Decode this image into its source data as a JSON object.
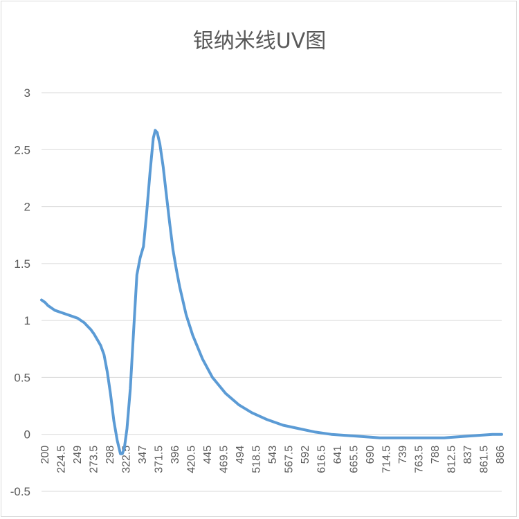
{
  "chart_data": {
    "type": "line",
    "title": "银纳米线UV图",
    "xlabel": "",
    "ylabel": "",
    "ylim": [
      -0.5,
      3
    ],
    "yticks": [
      "-0.5",
      "0",
      "0.5",
      "1",
      "1.5",
      "2",
      "2.5",
      "3"
    ],
    "xticks": [
      "200",
      "224.5",
      "249",
      "273.5",
      "298",
      "322.5",
      "347",
      "371.5",
      "396",
      "420.5",
      "445",
      "469.5",
      "494",
      "518.5",
      "543",
      "567.5",
      "592",
      "616.5",
      "641",
      "665.5",
      "690",
      "714.5",
      "739",
      "763.5",
      "788",
      "812.5",
      "837",
      "861.5",
      "886"
    ],
    "xlim": [
      200,
      900
    ],
    "grid": true,
    "legend": "none",
    "color": "#5b9bd5",
    "series": [
      {
        "x": [
          200,
          205,
          210,
          215,
          220,
          230,
          240,
          250,
          255,
          260,
          265,
          270,
          275,
          280,
          285,
          290,
          295,
          300,
          305,
          310,
          315,
          320,
          323,
          326,
          330,
          335,
          340,
          345,
          350,
          355,
          360,
          365,
          370,
          373,
          376,
          380,
          385,
          390,
          395,
          400,
          405,
          410,
          420,
          430,
          445,
          460,
          480,
          500,
          520,
          543,
          567.5,
          592,
          616.5,
          641,
          665.5,
          690,
          714.5,
          739,
          763.5,
          788,
          812.5,
          837,
          861.5,
          886,
          900
        ],
        "values": [
          1.18,
          1.16,
          1.13,
          1.11,
          1.09,
          1.07,
          1.05,
          1.03,
          1.02,
          1.0,
          0.98,
          0.95,
          0.92,
          0.88,
          0.83,
          0.78,
          0.7,
          0.55,
          0.35,
          0.12,
          -0.05,
          -0.17,
          -0.17,
          -0.12,
          0.05,
          0.4,
          0.9,
          1.4,
          1.55,
          1.65,
          1.95,
          2.3,
          2.6,
          2.67,
          2.65,
          2.55,
          2.35,
          2.1,
          1.85,
          1.62,
          1.45,
          1.3,
          1.05,
          0.87,
          0.66,
          0.5,
          0.36,
          0.26,
          0.19,
          0.13,
          0.08,
          0.05,
          0.02,
          0.0,
          -0.01,
          -0.02,
          -0.03,
          -0.03,
          -0.03,
          -0.03,
          -0.03,
          -0.02,
          -0.01,
          0.0,
          0.0
        ]
      }
    ]
  }
}
